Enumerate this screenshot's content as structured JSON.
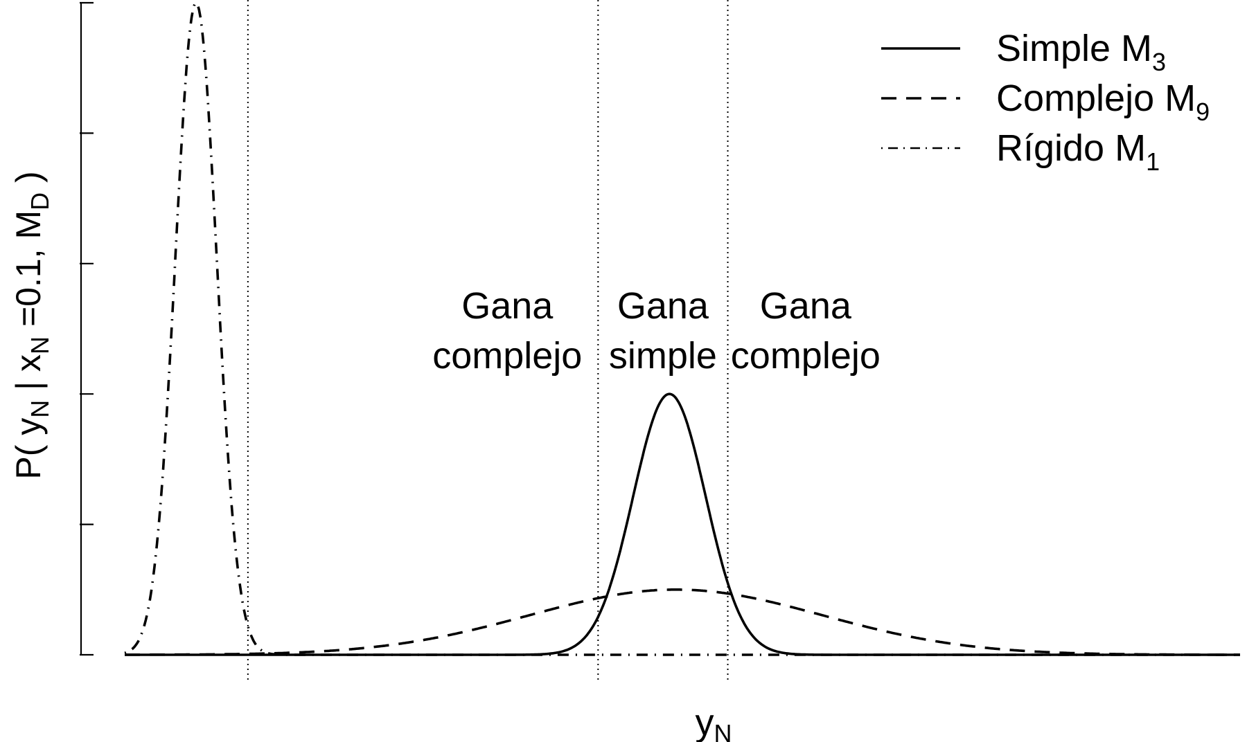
{
  "chart_data": {
    "type": "line",
    "xlabel": "y",
    "xlabel_sub": "N",
    "ylabel": {
      "parts": [
        "P( y",
        "N",
        " | x",
        "N",
        " =0.1, M",
        "D",
        " )"
      ]
    },
    "ylim": [
      0,
      5
    ],
    "yticks": [
      0,
      1,
      2,
      3,
      4,
      5
    ],
    "xlim": [
      -3.2,
      5.4
    ],
    "grid": false,
    "legend_position": "top-right",
    "series": [
      {
        "name": "Simple M",
        "name_sub": "3",
        "style": "solid",
        "distribution": "gaussian",
        "mean": 1.0,
        "sd": 0.28,
        "peak": 2.0
      },
      {
        "name": "Complejo M",
        "name_sub": "9",
        "style": "dashed",
        "distribution": "gaussian",
        "mean": 1.05,
        "sd": 1.13,
        "peak": 0.5
      },
      {
        "name": "Rígido M",
        "name_sub": "1",
        "style": "dash-dot",
        "distribution": "gaussian",
        "mean": -2.65,
        "sd": 0.16,
        "peak": 5.0
      }
    ],
    "vlines": [
      -2.25,
      0.45,
      1.45
    ],
    "region_labels": [
      {
        "x": -0.25,
        "line1": "Gana",
        "line2": "complejo"
      },
      {
        "x": 0.95,
        "line1": "Gana",
        "line2": "simple"
      },
      {
        "x": 2.05,
        "line1": "Gana",
        "line2": "complejo"
      }
    ]
  }
}
